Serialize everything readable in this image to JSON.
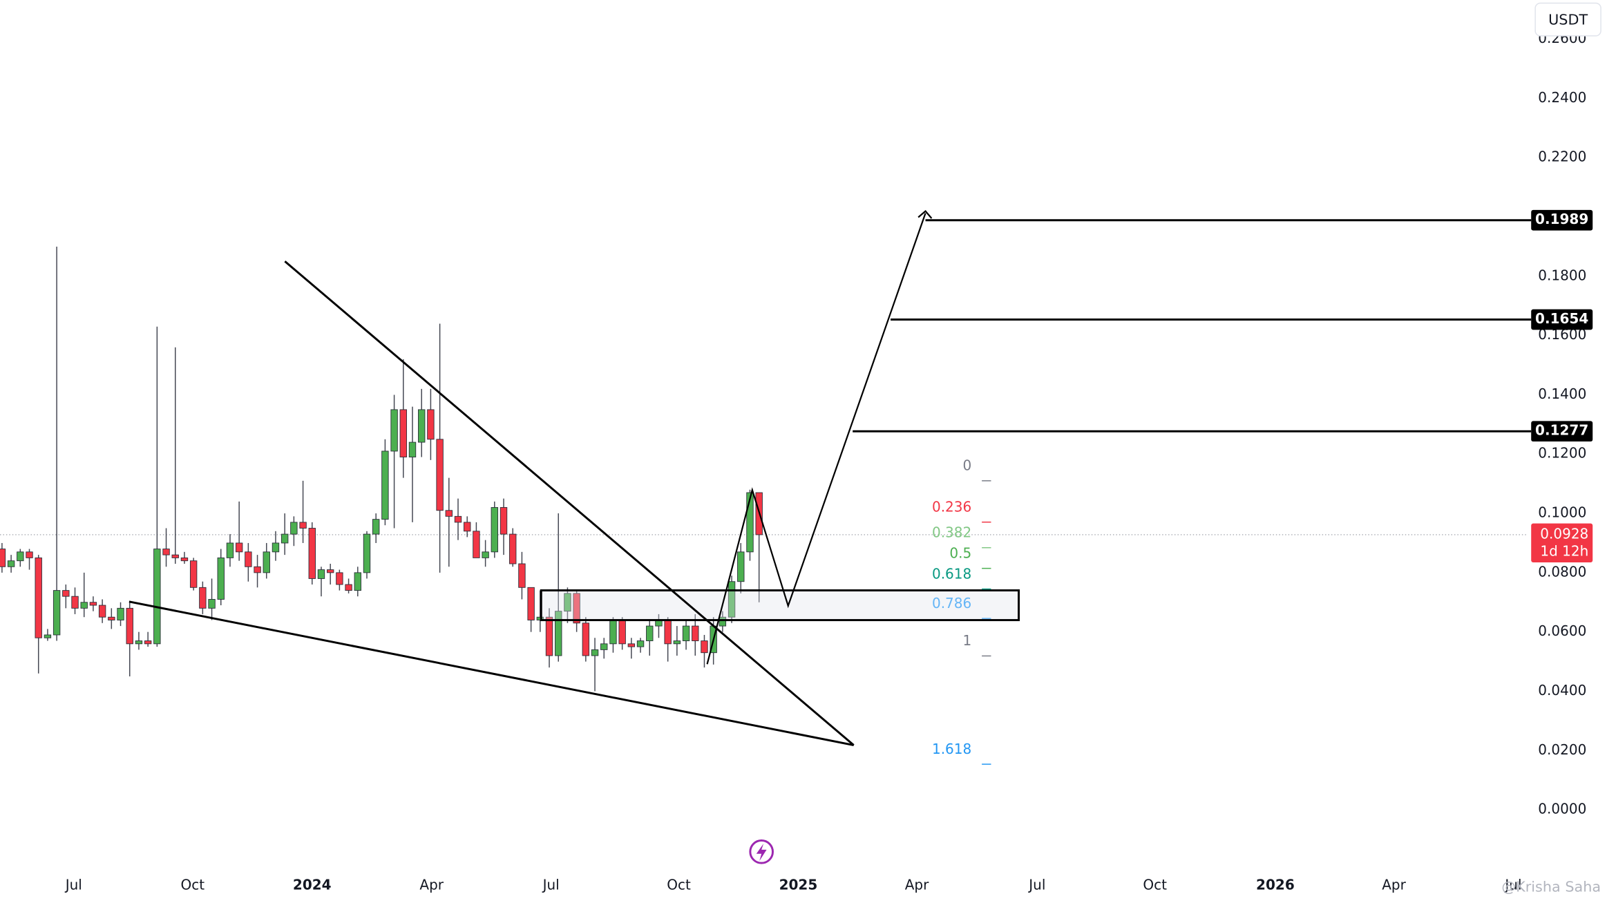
{
  "chart_data": {
    "type": "candlestick",
    "open": [
      0.088,
      0.082,
      0.084,
      0.087,
      0.085,
      0.058,
      0.059,
      0.074,
      0.072,
      0.068,
      0.07,
      0.069,
      0.065,
      0.064,
      0.068,
      0.056,
      0.057,
      0.056,
      0.088,
      0.086,
      0.085,
      0.084,
      0.075,
      0.068,
      0.071,
      0.085,
      0.09,
      0.087,
      0.082,
      0.08,
      0.087,
      0.09,
      0.093,
      0.097,
      0.095,
      0.078,
      0.081,
      0.08,
      0.076,
      0.074,
      0.08,
      0.093,
      0.098,
      0.121,
      0.135,
      0.119,
      0.124,
      0.135,
      0.125,
      0.101,
      0.099,
      0.097,
      0.094,
      0.085,
      0.087,
      0.102,
      0.093,
      0.083,
      0.075,
      0.064,
      0.065,
      0.052,
      0.067,
      0.073,
      0.063,
      0.052,
      0.054,
      0.056,
      0.064,
      0.056,
      0.055,
      0.057,
      0.062,
      0.064,
      0.056,
      0.057,
      0.062,
      0.057,
      0.053,
      0.062,
      0.065,
      0.077,
      0.087,
      0.107
    ],
    "high": [
      0.09,
      0.086,
      0.088,
      0.088,
      0.086,
      0.061,
      0.19,
      0.076,
      0.075,
      0.08,
      0.072,
      0.071,
      0.068,
      0.07,
      0.07,
      0.06,
      0.06,
      0.163,
      0.095,
      0.156,
      0.087,
      0.085,
      0.077,
      0.078,
      0.088,
      0.093,
      0.104,
      0.09,
      0.086,
      0.09,
      0.094,
      0.1,
      0.099,
      0.111,
      0.097,
      0.082,
      0.083,
      0.081,
      0.078,
      0.082,
      0.094,
      0.1,
      0.125,
      0.14,
      0.152,
      0.136,
      0.142,
      0.142,
      0.164,
      0.112,
      0.105,
      0.099,
      0.097,
      0.091,
      0.104,
      0.105,
      0.095,
      0.087,
      0.075,
      0.074,
      0.068,
      0.1,
      0.075,
      0.074,
      0.065,
      0.058,
      0.058,
      0.065,
      0.065,
      0.058,
      0.058,
      0.064,
      0.066,
      0.065,
      0.062,
      0.064,
      0.066,
      0.059,
      0.065,
      0.067,
      0.079,
      0.09,
      0.108,
      0.107
    ],
    "low": [
      0.08,
      0.08,
      0.082,
      0.081,
      0.046,
      0.057,
      0.057,
      0.068,
      0.066,
      0.065,
      0.067,
      0.063,
      0.061,
      0.062,
      0.045,
      0.054,
      0.055,
      0.055,
      0.082,
      0.083,
      0.083,
      0.074,
      0.066,
      0.064,
      0.069,
      0.082,
      0.084,
      0.077,
      0.075,
      0.078,
      0.084,
      0.086,
      0.089,
      0.09,
      0.076,
      0.072,
      0.076,
      0.074,
      0.073,
      0.072,
      0.078,
      0.09,
      0.096,
      0.095,
      0.112,
      0.097,
      0.119,
      0.118,
      0.08,
      0.082,
      0.091,
      0.092,
      0.085,
      0.082,
      0.085,
      0.086,
      0.082,
      0.071,
      0.06,
      0.06,
      0.048,
      0.05,
      0.063,
      0.06,
      0.05,
      0.04,
      0.051,
      0.053,
      0.054,
      0.051,
      0.053,
      0.052,
      0.058,
      0.05,
      0.052,
      0.054,
      0.052,
      0.048,
      0.049,
      0.06,
      0.063,
      0.073,
      0.084,
      0.07
    ],
    "close": [
      0.082,
      0.084,
      0.087,
      0.085,
      0.058,
      0.059,
      0.074,
      0.072,
      0.068,
      0.07,
      0.069,
      0.065,
      0.064,
      0.068,
      0.056,
      0.057,
      0.056,
      0.088,
      0.086,
      0.085,
      0.084,
      0.075,
      0.068,
      0.071,
      0.085,
      0.09,
      0.087,
      0.082,
      0.08,
      0.087,
      0.09,
      0.093,
      0.097,
      0.095,
      0.078,
      0.081,
      0.08,
      0.076,
      0.074,
      0.08,
      0.093,
      0.098,
      0.121,
      0.135,
      0.119,
      0.124,
      0.135,
      0.125,
      0.101,
      0.099,
      0.097,
      0.094,
      0.085,
      0.087,
      0.102,
      0.093,
      0.083,
      0.075,
      0.064,
      0.065,
      0.052,
      0.067,
      0.073,
      0.063,
      0.052,
      0.054,
      0.056,
      0.064,
      0.056,
      0.055,
      0.057,
      0.062,
      0.064,
      0.056,
      0.057,
      0.062,
      0.057,
      0.053,
      0.062,
      0.065,
      0.077,
      0.087,
      0.107,
      0.0928
    ],
    "up_color": "#4caf50",
    "down_color": "#f23645",
    "xlim": [
      -0.22,
      167.2
    ],
    "xticks": [
      {
        "value": 7.87,
        "label": "Jul"
      },
      {
        "value": 20.9,
        "label": "Oct"
      },
      {
        "value": 34.0,
        "label": "2024"
      },
      {
        "value": 47.1,
        "label": "Apr"
      },
      {
        "value": 60.2,
        "label": "Jul"
      },
      {
        "value": 74.2,
        "label": "Oct"
      },
      {
        "value": 87.3,
        "label": "2025"
      },
      {
        "value": 100.3,
        "label": "Apr"
      },
      {
        "value": 113.5,
        "label": "Jul"
      },
      {
        "value": 126.4,
        "label": "Oct"
      },
      {
        "value": 139.6,
        "label": "2026"
      },
      {
        "value": 152.6,
        "label": "Apr"
      },
      {
        "value": 165.7,
        "label": "Jul"
      }
    ],
    "ylim": [
      -0.019,
      0.2732
    ],
    "yticks": [
      {
        "value": 0,
        "label": "0.0000"
      },
      {
        "value": 0.02,
        "label": "0.0200"
      },
      {
        "value": 0.04,
        "label": "0.0400"
      },
      {
        "value": 0.06,
        "label": "0.0600"
      },
      {
        "value": 0.08,
        "label": "0.0800"
      },
      {
        "value": 0.1,
        "label": "0.1000"
      },
      {
        "value": 0.12,
        "label": "0.1200"
      },
      {
        "value": 0.14,
        "label": "0.1400"
      },
      {
        "value": 0.16,
        "label": "0.1600"
      },
      {
        "value": 0.18,
        "label": "0.1800"
      },
      {
        "value": 0.2,
        "label": "0.2000"
      },
      {
        "value": 0.22,
        "label": "0.2200"
      },
      {
        "value": 0.24,
        "label": "0.2400"
      },
      {
        "value": 0.26,
        "label": "0.2600"
      }
    ],
    "currency": "USDT",
    "last_price": 0.0928,
    "countdown": "1d 12h",
    "last_color": "#f23645",
    "targets": [
      0.1989,
      0.1654,
      0.1277
    ],
    "fib": {
      "high": 0.111,
      "low": 0.0519,
      "levels": [
        0,
        0.236,
        0.382,
        0.5,
        0.618,
        0.786,
        1,
        1.618
      ],
      "colors": [
        "#787b86",
        "#f23645",
        "#81c784",
        "#4caf50",
        "#089981",
        "#64b5f6",
        "#787b86",
        "#2196f3"
      ]
    },
    "watermark": "@Krisha Saha"
  }
}
